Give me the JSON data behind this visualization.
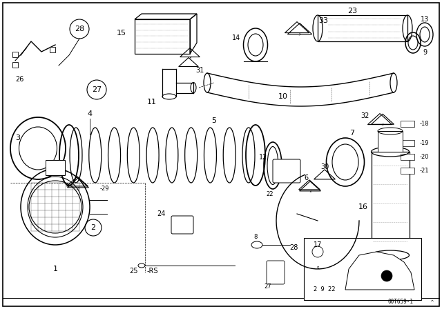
{
  "bg_color": "#ffffff",
  "line_color": "#000000",
  "diagram_id": "00T659-1",
  "figsize": [
    6.4,
    4.48
  ],
  "dpi": 100
}
